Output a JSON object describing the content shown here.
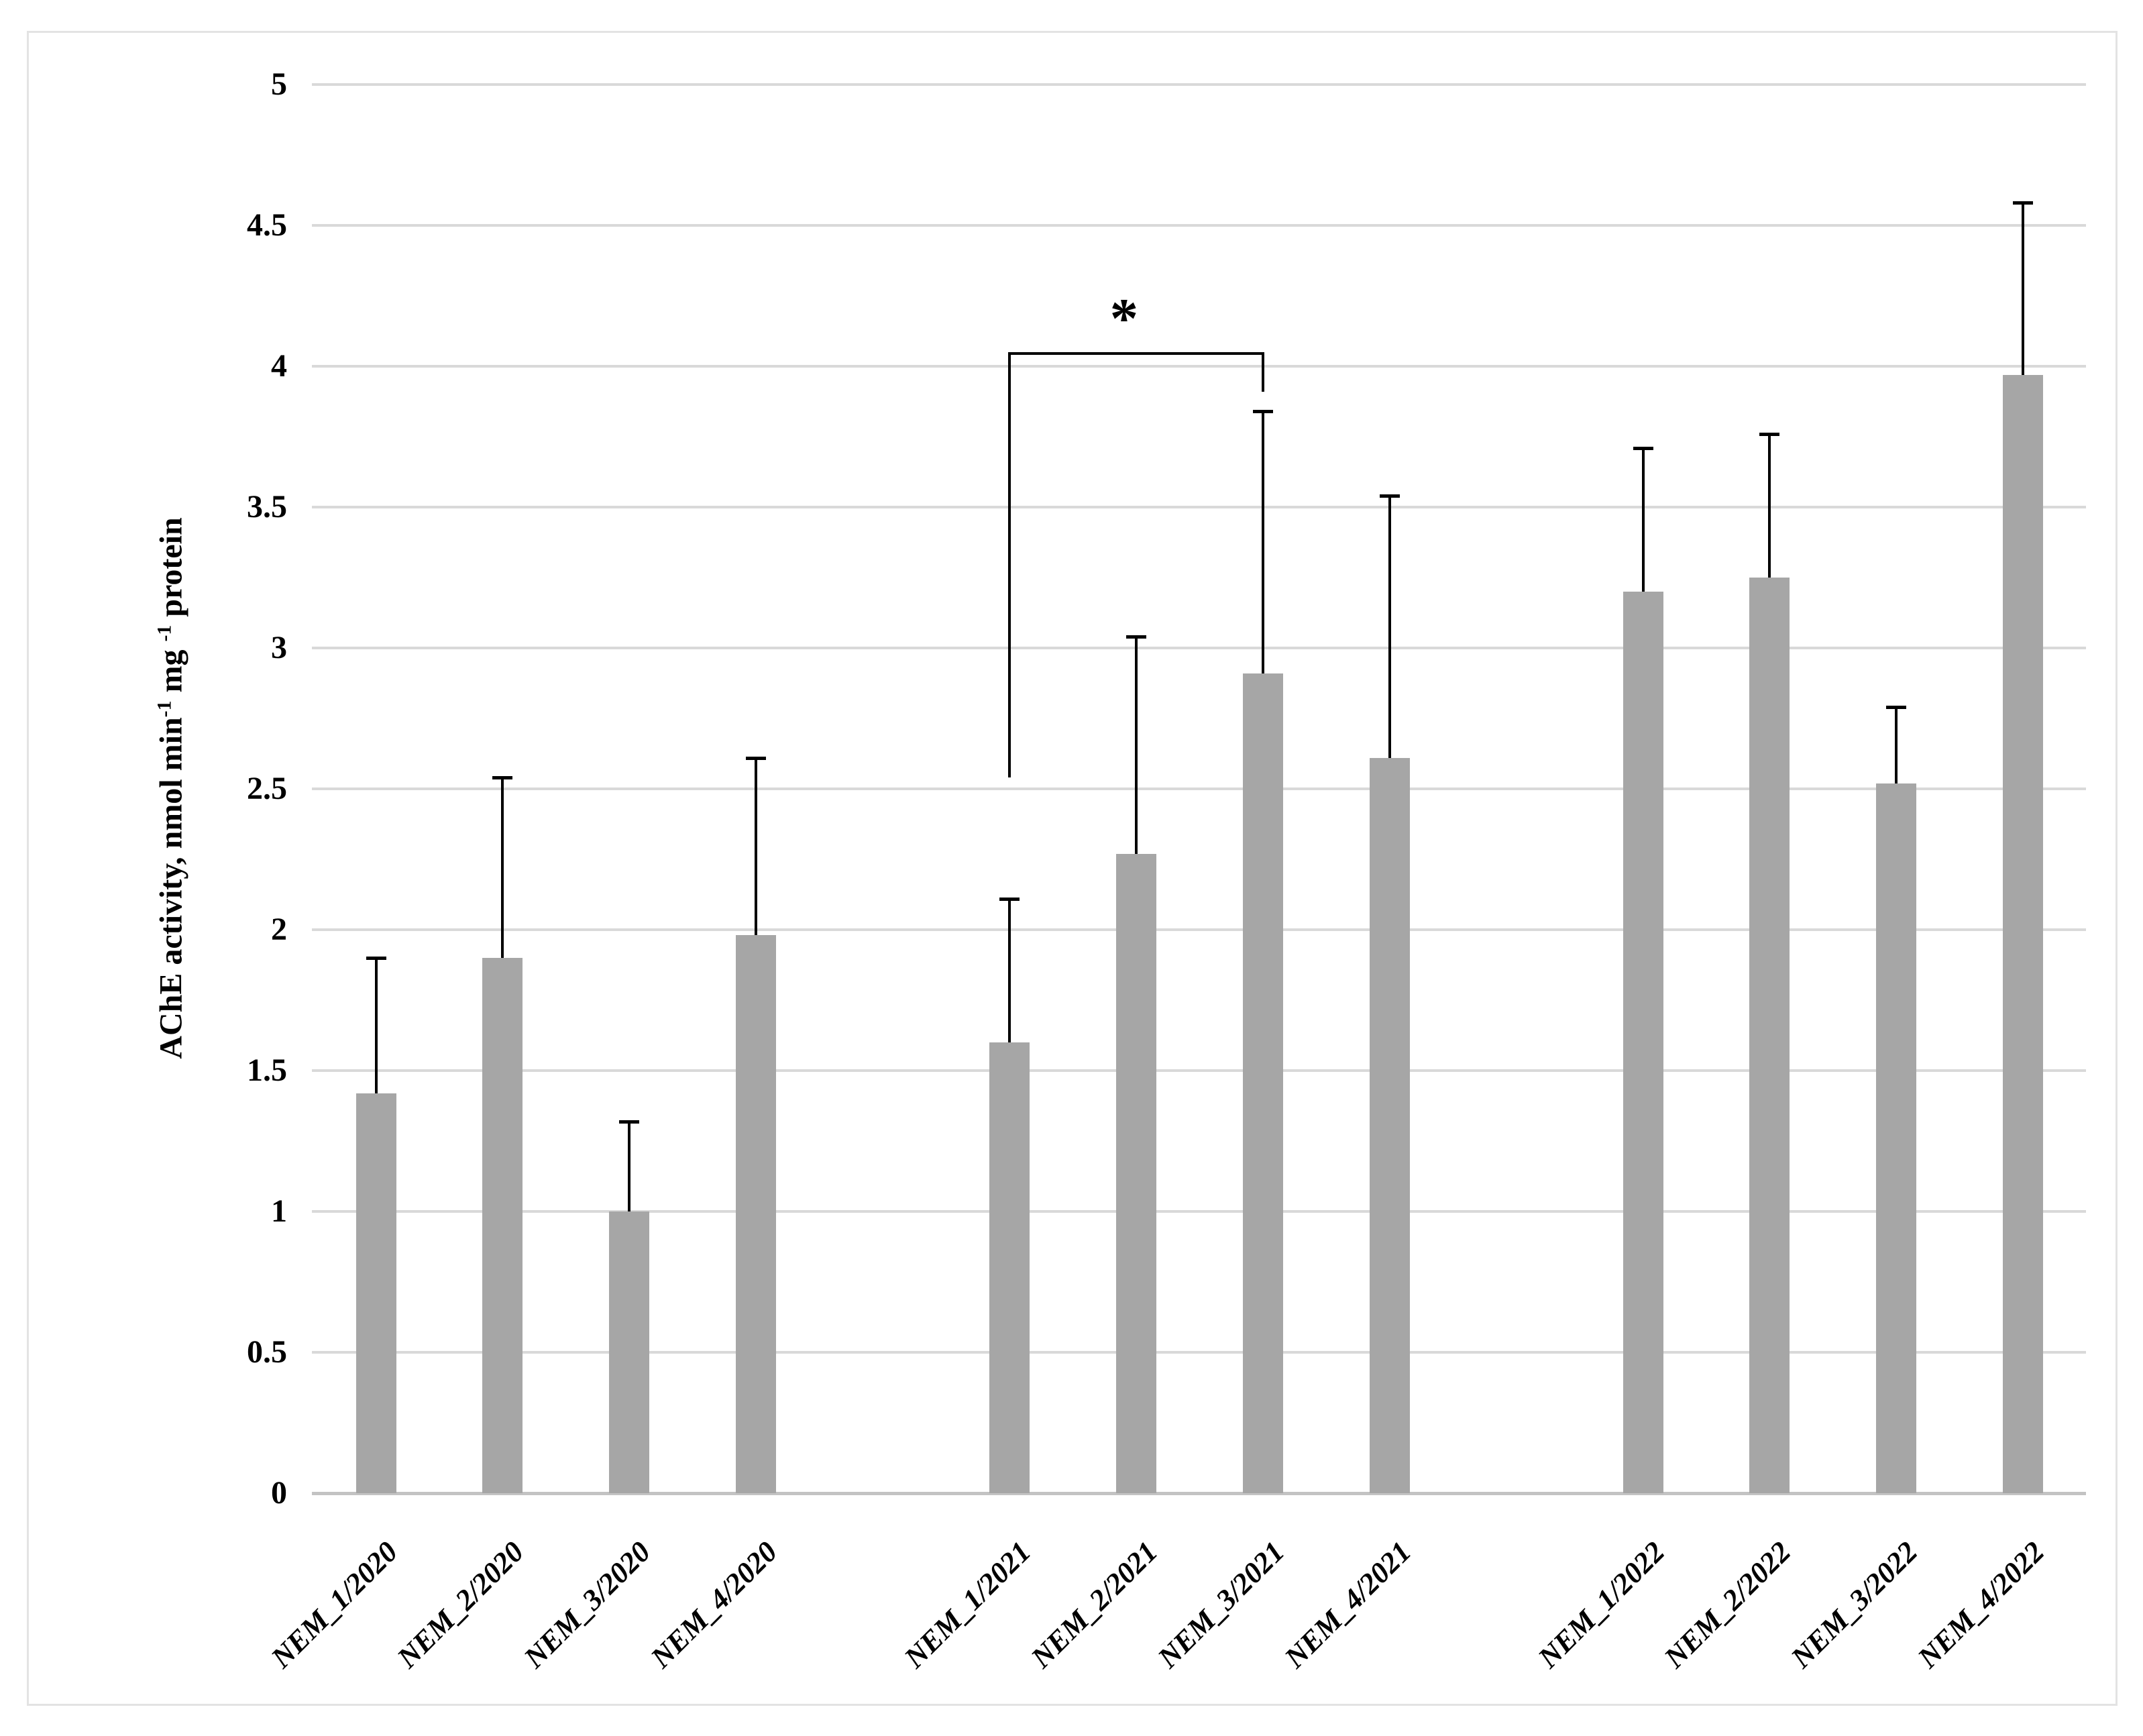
{
  "figure": {
    "background": "#ffffff",
    "border_color": "#e3e3e3"
  },
  "chart_data": {
    "type": "bar",
    "title": "",
    "xlabel": "",
    "ylabel": "AChE activity, nmol min-1 mg-1 protein",
    "ylabel_runs": [
      {
        "t": "AChE activity, nmol min",
        "sup": false
      },
      {
        "t": "-1",
        "sup": true
      },
      {
        "t": " mg ",
        "sup": false
      },
      {
        "t": "-1",
        "sup": true
      },
      {
        "t": " protein",
        "sup": false
      }
    ],
    "categories": [
      "NEM_1/2020",
      "NEM_2/2020",
      "NEM_3/2020",
      "NEM_4/2020",
      "NEM_1/2021",
      "NEM_2/2021",
      "NEM_3/2021",
      "NEM_4/2021",
      "NEM_1/2022",
      "NEM_2/2022",
      "NEM_3/2022",
      "NEM_4/2022"
    ],
    "values": [
      1.42,
      1.9,
      1.0,
      1.98,
      1.6,
      2.27,
      2.91,
      2.61,
      3.2,
      3.25,
      2.52,
      3.97
    ],
    "error_upper": [
      0.48,
      0.64,
      0.32,
      0.63,
      0.51,
      0.77,
      0.93,
      0.93,
      0.51,
      0.51,
      0.27,
      0.61
    ],
    "ylim": [
      0,
      5
    ],
    "ytick_step": 0.5,
    "yticks": [
      "0",
      "0.5",
      "1",
      "1.5",
      "2",
      "2.5",
      "3",
      "3.5",
      "4",
      "4.5",
      "5"
    ],
    "grid": true,
    "legend": null,
    "group_size": 4,
    "bar_color": "#a6a6a6",
    "gridline_color": "#d9d9d9",
    "axis_line_color": "#c3c3c3",
    "error_bar_color": "#000000",
    "significance": {
      "label": "*",
      "from": "NEM_1/2021",
      "to": "NEM_3/2021",
      "bracket_top_value": 4.05,
      "from_drop_to_value": 2.54,
      "to_drop_to_value": 3.91
    }
  }
}
